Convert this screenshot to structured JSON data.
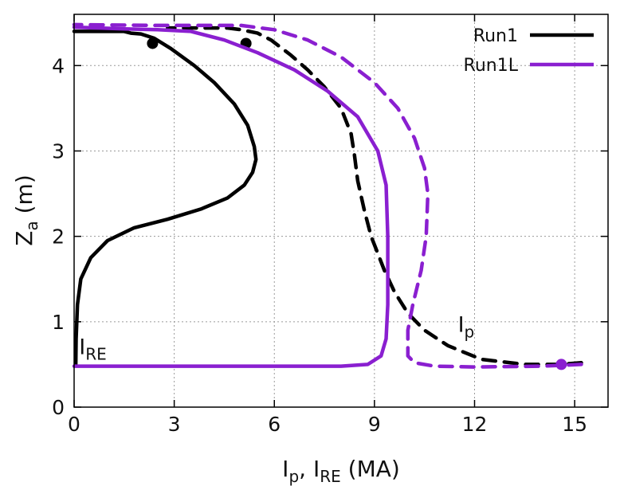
{
  "chart_data": {
    "type": "line",
    "xlabel": {
      "main": "I",
      "sub1": "p",
      "mid": ", I",
      "sub2": "RE",
      "tail": " (MA)"
    },
    "ylabel": {
      "main": "Z",
      "sub": "a",
      "tail": " (m)"
    },
    "xlim": [
      0,
      16
    ],
    "ylim": [
      0,
      4.6
    ],
    "xticks": [
      0,
      3,
      6,
      9,
      12,
      15
    ],
    "yticks": [
      0,
      1,
      2,
      3,
      4
    ],
    "grid": true,
    "legend_position": "top-right",
    "colors": {
      "run1": "#000000",
      "run1L": "#8a1fd0"
    },
    "legend": [
      {
        "label": "Run1",
        "color": "#000000"
      },
      {
        "label": "Run1L",
        "color": "#8a1fd0"
      }
    ],
    "annotations": [
      {
        "main": "I",
        "sub": "RE",
        "at": [
          0.15,
          0.62
        ]
      },
      {
        "main": "I",
        "sub": "p",
        "at": [
          11.5,
          0.88
        ]
      }
    ],
    "series": [
      {
        "name": "Run1",
        "quantity": "I_RE",
        "style": "solid",
        "color": "#000000",
        "points": [
          [
            0.05,
            0.5
          ],
          [
            0.06,
            0.8
          ],
          [
            0.1,
            1.2
          ],
          [
            0.2,
            1.5
          ],
          [
            0.5,
            1.75
          ],
          [
            1.0,
            1.95
          ],
          [
            1.8,
            2.1
          ],
          [
            2.8,
            2.2
          ],
          [
            3.8,
            2.32
          ],
          [
            4.6,
            2.45
          ],
          [
            5.1,
            2.6
          ],
          [
            5.35,
            2.75
          ],
          [
            5.45,
            2.9
          ],
          [
            5.4,
            3.05
          ],
          [
            5.2,
            3.3
          ],
          [
            4.8,
            3.55
          ],
          [
            4.2,
            3.8
          ],
          [
            3.6,
            4.0
          ],
          [
            2.9,
            4.2
          ],
          [
            2.4,
            4.32
          ],
          [
            2.0,
            4.37
          ],
          [
            1.7,
            4.38
          ],
          [
            1.5,
            4.4
          ],
          [
            0.0,
            4.4
          ]
        ],
        "markers": [
          [
            2.35,
            4.26
          ]
        ]
      },
      {
        "name": "Run1",
        "quantity": "I_p",
        "style": "dashed",
        "color": "#000000",
        "points": [
          [
            15.2,
            0.52
          ],
          [
            14.5,
            0.5
          ],
          [
            13.5,
            0.5
          ],
          [
            12.2,
            0.56
          ],
          [
            11.2,
            0.72
          ],
          [
            10.5,
            0.9
          ],
          [
            10.0,
            1.1
          ],
          [
            9.6,
            1.35
          ],
          [
            9.3,
            1.6
          ],
          [
            9.1,
            1.8
          ],
          [
            8.9,
            2.0
          ],
          [
            8.7,
            2.3
          ],
          [
            8.5,
            2.65
          ],
          [
            8.4,
            2.95
          ],
          [
            8.3,
            3.2
          ],
          [
            8.0,
            3.5
          ],
          [
            7.5,
            3.75
          ],
          [
            7.0,
            3.95
          ],
          [
            6.5,
            4.12
          ],
          [
            5.9,
            4.3
          ],
          [
            5.5,
            4.38
          ],
          [
            5.0,
            4.42
          ],
          [
            4.6,
            4.44
          ],
          [
            2.8,
            4.44
          ]
        ],
        "markers": [
          [
            5.15,
            4.26
          ]
        ]
      },
      {
        "name": "Run1L",
        "quantity": "I_RE",
        "style": "solid",
        "color": "#8a1fd0",
        "points": [
          [
            0.0,
            0.48
          ],
          [
            8.0,
            0.48
          ],
          [
            8.8,
            0.5
          ],
          [
            9.2,
            0.6
          ],
          [
            9.35,
            0.8
          ],
          [
            9.4,
            1.2
          ],
          [
            9.4,
            2.0
          ],
          [
            9.35,
            2.6
          ],
          [
            9.1,
            3.0
          ],
          [
            8.5,
            3.4
          ],
          [
            7.6,
            3.7
          ],
          [
            6.6,
            3.95
          ],
          [
            5.5,
            4.15
          ],
          [
            4.5,
            4.3
          ],
          [
            3.5,
            4.4
          ],
          [
            2.5,
            4.42
          ],
          [
            1.5,
            4.43
          ],
          [
            0.0,
            4.45
          ]
        ]
      },
      {
        "name": "Run1L",
        "quantity": "I_p",
        "style": "dashed",
        "color": "#8a1fd0",
        "points": [
          [
            15.2,
            0.5
          ],
          [
            14.0,
            0.48
          ],
          [
            12.0,
            0.47
          ],
          [
            10.8,
            0.48
          ],
          [
            10.2,
            0.52
          ],
          [
            10.0,
            0.6
          ],
          [
            10.0,
            0.9
          ],
          [
            10.15,
            1.2
          ],
          [
            10.4,
            1.6
          ],
          [
            10.55,
            2.0
          ],
          [
            10.6,
            2.5
          ],
          [
            10.5,
            2.8
          ],
          [
            10.2,
            3.15
          ],
          [
            9.7,
            3.5
          ],
          [
            9.0,
            3.8
          ],
          [
            8.0,
            4.1
          ],
          [
            7.0,
            4.3
          ],
          [
            6.0,
            4.42
          ],
          [
            5.0,
            4.47
          ],
          [
            2.5,
            4.47
          ],
          [
            0.0,
            4.48
          ]
        ],
        "markers": [
          [
            14.6,
            0.5
          ]
        ]
      }
    ]
  }
}
